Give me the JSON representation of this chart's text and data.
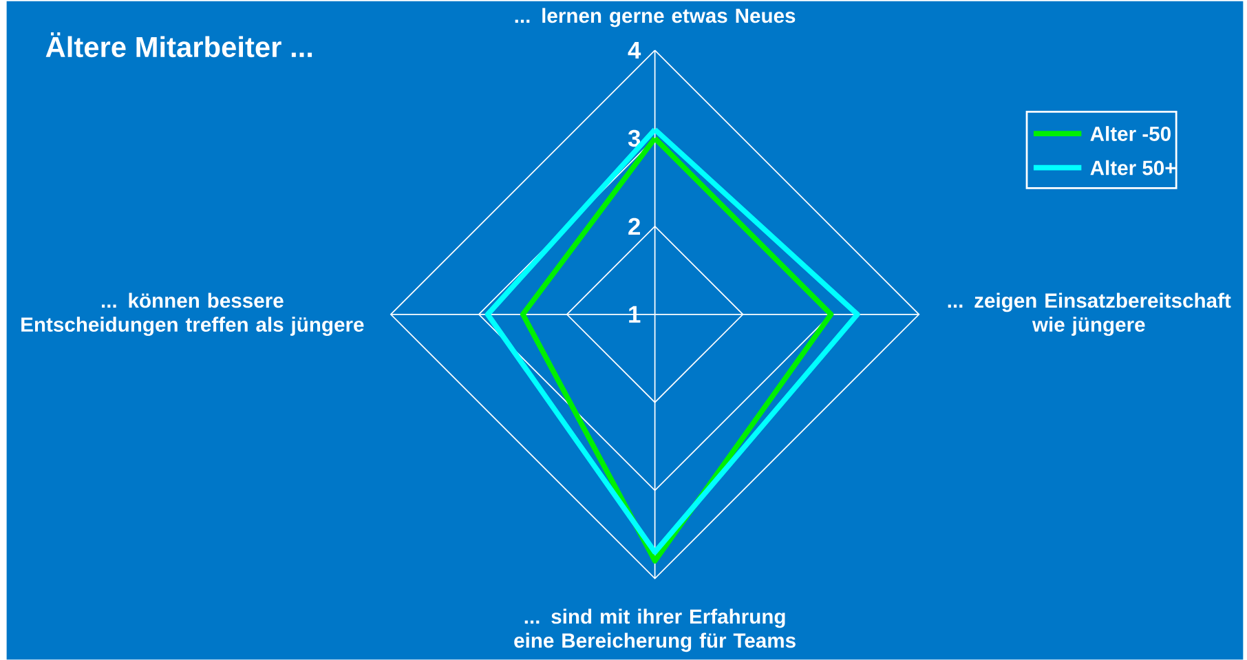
{
  "chart_data": {
    "type": "radar",
    "title": "Ältere Mitarbeiter ...",
    "categories": [
      "... lernen gerne etwas Neues",
      "... zeigen Einsatzbereitschaft wie jüngere",
      "... sind mit ihrer Erfahrung eine Bereicherung für Teams",
      "... können bessere Entscheidungen treffen als jüngere"
    ],
    "series": [
      {
        "name": "Alter -50",
        "color": "#00f000",
        "values": [
          3.0,
          3.0,
          3.8,
          2.5
        ]
      },
      {
        "name": "Alter 50+",
        "color": "#00ffff",
        "values": [
          3.1,
          3.3,
          3.7,
          2.9
        ]
      }
    ],
    "ylim": [
      1,
      4
    ],
    "yticks": [
      1,
      2,
      3,
      4
    ],
    "grid": true,
    "legend": "top right"
  }
}
